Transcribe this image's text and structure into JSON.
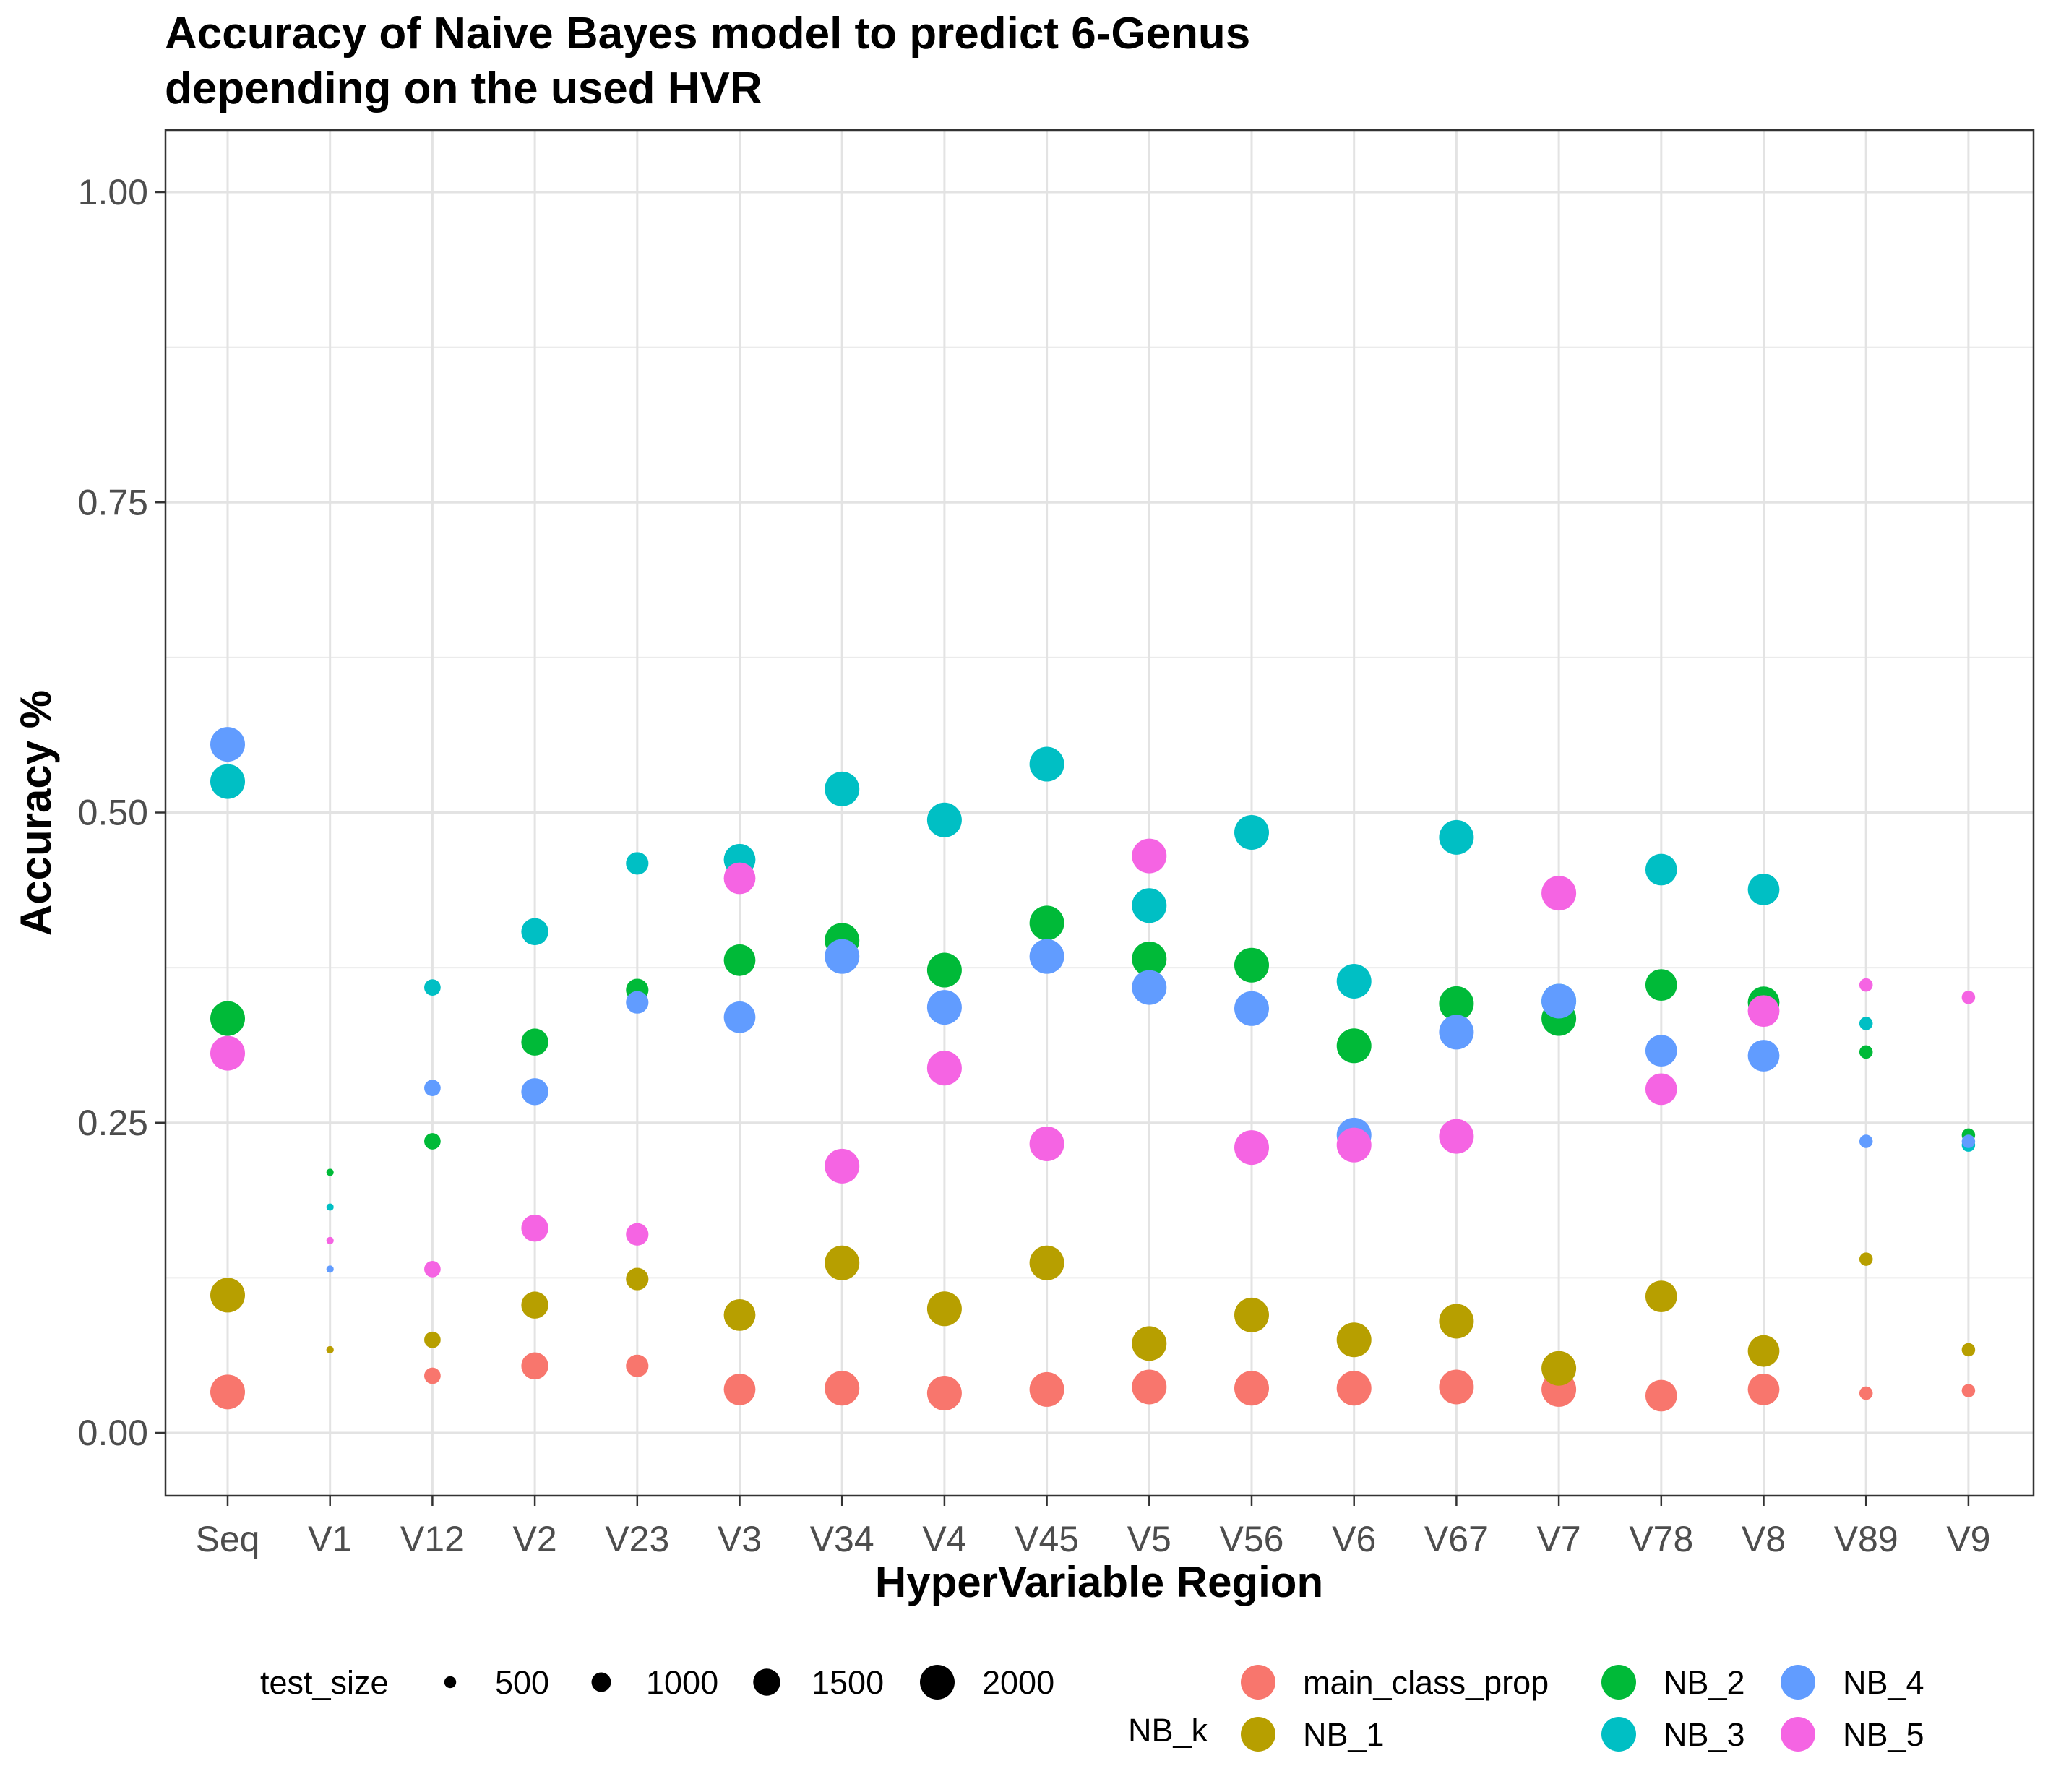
{
  "chart_data": {
    "type": "scatter",
    "title_lines": [
      "Accuracy of Naive Bayes model to predict 6-Genus",
      "depending on the used HVR"
    ],
    "xlabel": "HyperVariable Region",
    "ylabel": "Accuracy %",
    "categories": [
      "Seq",
      "V1",
      "V12",
      "V2",
      "V23",
      "V3",
      "V34",
      "V4",
      "V45",
      "V5",
      "V56",
      "V6",
      "V67",
      "V7",
      "V78",
      "V8",
      "V89",
      "V9"
    ],
    "ylim": [
      -0.05,
      1.05
    ],
    "y_ticks": [
      0.0,
      0.25,
      0.5,
      0.75,
      1.0
    ],
    "y_tick_labels": [
      "0.00",
      "0.25",
      "0.50",
      "0.75",
      "1.00"
    ],
    "grid": true,
    "test_size": [
      2000,
      200,
      800,
      1500,
      1200,
      1800,
      2000,
      2000,
      2000,
      2000,
      2000,
      2000,
      2000,
      2000,
      1800,
      1800,
      600,
      600
    ],
    "series": [
      {
        "name": "main_class_prop",
        "color": "#F8766D",
        "values": [
          0.033,
          0.067,
          0.046,
          0.054,
          0.054,
          0.035,
          0.036,
          0.032,
          0.035,
          0.037,
          0.036,
          0.036,
          0.037,
          0.035,
          0.03,
          0.035,
          0.032,
          0.034
        ]
      },
      {
        "name": "NB_1",
        "color": "#B79F00",
        "values": [
          0.111,
          0.067,
          0.075,
          0.103,
          0.124,
          0.095,
          0.137,
          0.1,
          0.137,
          0.072,
          0.095,
          0.075,
          0.09,
          0.052,
          0.11,
          0.066,
          0.14,
          0.067
        ]
      },
      {
        "name": "NB_2",
        "color": "#00BA38",
        "values": [
          0.334,
          0.21,
          0.235,
          0.315,
          0.357,
          0.381,
          0.397,
          0.373,
          0.411,
          0.382,
          0.377,
          0.312,
          0.346,
          0.334,
          0.361,
          0.347,
          0.307,
          0.24
        ]
      },
      {
        "name": "NB_3",
        "color": "#00BFC4",
        "values": [
          0.525,
          0.182,
          0.359,
          0.404,
          0.459,
          0.462,
          0.519,
          0.494,
          0.539,
          0.425,
          0.484,
          0.364,
          0.48,
          0.348,
          0.454,
          0.438,
          0.33,
          0.232
        ]
      },
      {
        "name": "NB_4",
        "color": "#619CFF",
        "values": [
          0.555,
          0.132,
          0.278,
          0.275,
          0.347,
          0.335,
          0.384,
          0.343,
          0.384,
          0.359,
          0.342,
          0.24,
          0.323,
          0.348,
          0.308,
          0.304,
          0.235,
          0.235
        ]
      },
      {
        "name": "NB_5",
        "color": "#F564E3",
        "values": [
          0.306,
          0.155,
          0.132,
          0.165,
          0.16,
          0.447,
          0.215,
          0.294,
          0.233,
          0.465,
          0.23,
          0.232,
          0.239,
          0.435,
          0.277,
          0.34,
          0.361,
          0.351
        ]
      }
    ],
    "legend": {
      "position": "bottom",
      "size_title": "test_size",
      "size_values": [
        500,
        1000,
        1500,
        2000
      ],
      "size_labels": [
        "500",
        "1000",
        "1500",
        "2000"
      ],
      "color_title": "NB_k"
    }
  }
}
